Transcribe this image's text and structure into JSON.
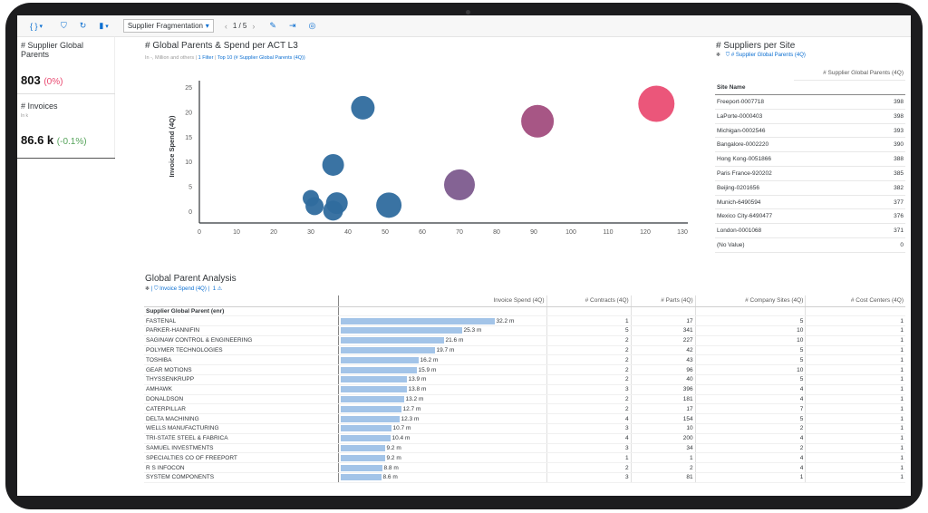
{
  "toolbar": {
    "story_selector": "Supplier Fragmentation",
    "page_indicator": "1 / 5"
  },
  "kpis": [
    {
      "title": "# Supplier Global Parents",
      "value": "803",
      "delta": "(0%)",
      "delta_color": "#e9486f"
    },
    {
      "title": "# Invoices",
      "sub": "In k",
      "value": "86.6 k",
      "delta": "(-0.1%)",
      "delta_color": "#55a35a"
    }
  ],
  "bubble_chart": {
    "title": "# Global Parents & Spend per ACT L3",
    "subtitle": "In -, Million and others",
    "filter_count": "1 Filter",
    "filter_top": "Top 10 (# Supplier Global Parents (4Q))",
    "chart_data": {
      "type": "scatter",
      "xlabel": "# Supplier Global Parents (4Q)",
      "ylabel": "Invoice Spend (4Q)",
      "xlim": [
        0,
        130
      ],
      "ylim": [
        0,
        25
      ],
      "xticks": [
        "0",
        "10",
        "20",
        "30",
        "40",
        "50",
        "60",
        "70",
        "80",
        "90",
        "100",
        "110",
        "120",
        "130"
      ],
      "yticks": [
        "0",
        "5",
        "10",
        "15",
        "20",
        "25"
      ],
      "points": [
        {
          "x": 123,
          "y": 21.8,
          "size": 20,
          "color": "#ea4d73"
        },
        {
          "x": 91,
          "y": 18.3,
          "size": 18,
          "color": "#a24d7e"
        },
        {
          "x": 70,
          "y": 5.5,
          "size": 17,
          "color": "#7d5b8e"
        },
        {
          "x": 44,
          "y": 21,
          "size": 13,
          "color": "#2f6b9e"
        },
        {
          "x": 36,
          "y": 9.5,
          "size": 12,
          "color": "#2f6b9e"
        },
        {
          "x": 51,
          "y": 1.4,
          "size": 14,
          "color": "#2f6b9e"
        },
        {
          "x": 37,
          "y": 1.8,
          "size": 12,
          "color": "#2f6b9e"
        },
        {
          "x": 30,
          "y": 2.8,
          "size": 9,
          "color": "#2f6b9e"
        },
        {
          "x": 31,
          "y": 1.2,
          "size": 10,
          "color": "#2f6b9e"
        },
        {
          "x": 36,
          "y": 0.3,
          "size": 11,
          "color": "#2f6b9e"
        }
      ]
    }
  },
  "sites": {
    "title": "# Suppliers per Site",
    "filter": "# Supplier Global Parents (4Q)",
    "col_header": "# Supplier Global Parents (4Q)",
    "row_header": "Site Name",
    "rows": [
      {
        "name": "Freeport-0007718",
        "value": "398"
      },
      {
        "name": "LaPorte-0000403",
        "value": "398"
      },
      {
        "name": "Michigan-0002546",
        "value": "393"
      },
      {
        "name": "Bangalore-0002220",
        "value": "390"
      },
      {
        "name": "Hong Kong-0051866",
        "value": "388"
      },
      {
        "name": "Paris France-920202",
        "value": "385"
      },
      {
        "name": "Beijing-0201656",
        "value": "382"
      },
      {
        "name": "Munich-6490594",
        "value": "377"
      },
      {
        "name": "Mexico City-6490477",
        "value": "376"
      },
      {
        "name": "London-0001068",
        "value": "371"
      },
      {
        "name": "(No Value)",
        "value": "0"
      }
    ]
  },
  "gpa": {
    "title": "Global Parent Analysis",
    "filter": "Invoice Spend (4Q)",
    "filter_count": "1",
    "row_header": "Supplier Global Parent (enr)",
    "columns": [
      "Invoice Spend (4Q)",
      "# Contracts (4Q)",
      "# Parts (4Q)",
      "# Company Sites (4Q)",
      "# Cost Centers (4Q)"
    ],
    "rows": [
      {
        "name": "FASTENAL",
        "spend": 32.2,
        "spend_label": "32.2 m",
        "contracts": "1",
        "parts": "17",
        "sites": "5",
        "cc": "1"
      },
      {
        "name": "PARKER-HANNIFIN",
        "spend": 25.3,
        "spend_label": "25.3 m",
        "contracts": "5",
        "parts": "341",
        "sites": "10",
        "cc": "1"
      },
      {
        "name": "SAGINAW CONTROL & ENGINEERING",
        "spend": 21.6,
        "spend_label": "21.6 m",
        "contracts": "2",
        "parts": "227",
        "sites": "10",
        "cc": "1"
      },
      {
        "name": "POLYMER TECHNOLOGIES",
        "spend": 19.7,
        "spend_label": "19.7 m",
        "contracts": "2",
        "parts": "42",
        "sites": "5",
        "cc": "1"
      },
      {
        "name": "TOSHIBA",
        "spend": 16.2,
        "spend_label": "16.2 m",
        "contracts": "2",
        "parts": "43",
        "sites": "5",
        "cc": "1"
      },
      {
        "name": "GEAR MOTIONS",
        "spend": 15.9,
        "spend_label": "15.9 m",
        "contracts": "2",
        "parts": "96",
        "sites": "10",
        "cc": "1"
      },
      {
        "name": "THYSSENKRUPP",
        "spend": 13.9,
        "spend_label": "13.9 m",
        "contracts": "2",
        "parts": "40",
        "sites": "5",
        "cc": "1"
      },
      {
        "name": "AMHAWK",
        "spend": 13.8,
        "spend_label": "13.8 m",
        "contracts": "3",
        "parts": "396",
        "sites": "4",
        "cc": "1"
      },
      {
        "name": "DONALDSON",
        "spend": 13.2,
        "spend_label": "13.2 m",
        "contracts": "2",
        "parts": "181",
        "sites": "4",
        "cc": "1"
      },
      {
        "name": "CATERPILLAR",
        "spend": 12.7,
        "spend_label": "12.7 m",
        "contracts": "2",
        "parts": "17",
        "sites": "7",
        "cc": "1"
      },
      {
        "name": "DELTA MACHINING",
        "spend": 12.3,
        "spend_label": "12.3 m",
        "contracts": "4",
        "parts": "154",
        "sites": "5",
        "cc": "1"
      },
      {
        "name": "WELLS MANUFACTURING",
        "spend": 10.7,
        "spend_label": "10.7 m",
        "contracts": "3",
        "parts": "10",
        "sites": "2",
        "cc": "1"
      },
      {
        "name": "TRI-STATE STEEL & FABRICA",
        "spend": 10.4,
        "spend_label": "10.4 m",
        "contracts": "4",
        "parts": "200",
        "sites": "4",
        "cc": "1"
      },
      {
        "name": "SAMUEL INVESTMENTS",
        "spend": 9.2,
        "spend_label": "9.2 m",
        "contracts": "3",
        "parts": "34",
        "sites": "2",
        "cc": "1"
      },
      {
        "name": "SPECIALTIES CO OF FREEPORT",
        "spend": 9.2,
        "spend_label": "9.2 m",
        "contracts": "1",
        "parts": "1",
        "sites": "4",
        "cc": "1"
      },
      {
        "name": "R S INFOCON",
        "spend": 8.8,
        "spend_label": "8.8 m",
        "contracts": "2",
        "parts": "2",
        "sites": "4",
        "cc": "1"
      },
      {
        "name": "SYSTEM COMPONENTS",
        "spend": 8.6,
        "spend_label": "8.6 m",
        "contracts": "3",
        "parts": "81",
        "sites": "1",
        "cc": "1"
      }
    ]
  }
}
